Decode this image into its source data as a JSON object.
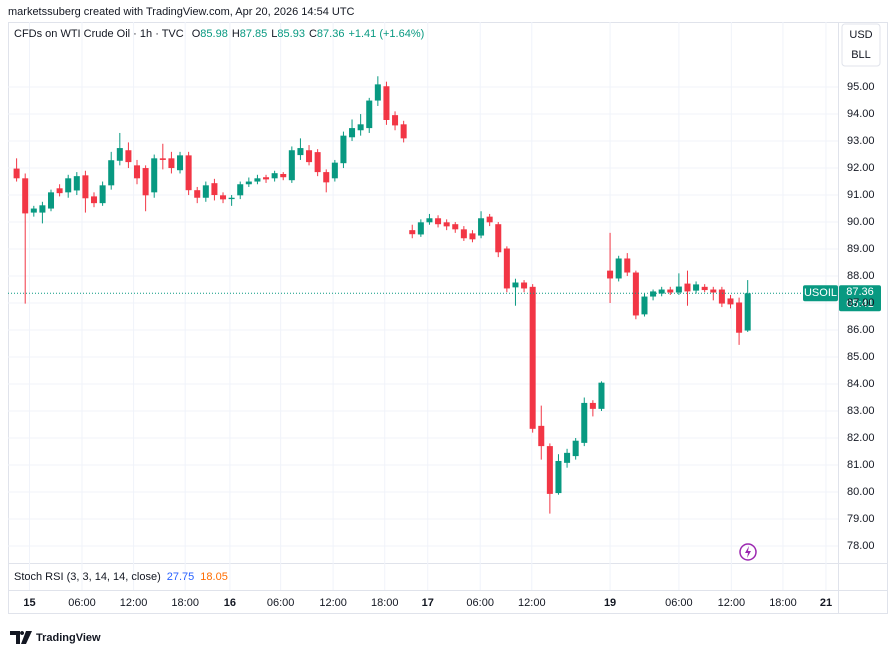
{
  "header": {
    "text": "marketssuberg created with TradingView.com, Apr 20, 2026 14:54 UTC"
  },
  "legend": {
    "symbol": "CFDs on WTI Crude Oil · 1h · TVC",
    "open_label": "O",
    "open": 85.98,
    "high_label": "H",
    "high": 87.85,
    "low_label": "L",
    "low": 85.93,
    "close_label": "C",
    "close": 87.36,
    "change": "+1.41 (+1.64%)"
  },
  "currency": {
    "unit": "USD",
    "measure": "BLL"
  },
  "price_tag": {
    "symbol": "USOIL",
    "price": 87.36,
    "countdown": "05:41"
  },
  "indicator": {
    "name": "Stoch RSI (3, 3, 14, 14, close)",
    "k": 27.75,
    "k_color": "#2962ff",
    "d": 18.05,
    "d_color": "#ff6d00"
  },
  "branding": {
    "logo": "TradingView"
  },
  "chart_data": {
    "type": "candlestick",
    "up_color": "#089981",
    "down_color": "#f23645",
    "open": [
      91.98,
      91.62,
      90.35,
      90.35,
      90.5,
      91.25,
      91.1,
      91.17,
      91.73,
      90.95,
      90.7,
      91.36,
      92.27,
      92.66,
      92.1,
      92.0,
      91.1,
      92.36,
      92.36,
      91.92,
      92.47,
      91.18,
      90.9,
      91.44,
      90.99,
      90.85,
      90.99,
      91.4,
      91.5,
      91.66,
      91.62,
      91.78,
      91.55,
      92.48,
      92.66,
      92.59,
      91.85,
      91.62,
      92.18,
      93.14,
      93.4,
      93.48,
      94.5,
      95.03,
      93.96,
      93.62,
      89.7,
      89.54,
      89.99,
      90.14,
      89.99,
      89.92,
      89.73,
      89.58,
      89.5,
      90.2,
      89.92,
      89.02,
      87.58,
      87.76,
      87.6,
      82.45,
      81.7,
      79.96,
      81.08,
      81.33,
      81.82,
      83.3,
      83.08,
      88.2,
      87.91,
      88.65,
      88.13,
      86.58,
      87.24,
      87.35,
      87.5,
      87.39,
      87.72,
      87.46,
      87.6,
      87.5,
      87.5,
      87.17,
      87.02,
      85.98
    ],
    "high": [
      92.36,
      91.8,
      90.6,
      90.75,
      91.2,
      91.4,
      91.75,
      91.85,
      91.9,
      91.1,
      91.5,
      92.6,
      93.3,
      92.95,
      92.3,
      92.1,
      92.5,
      92.9,
      92.6,
      92.6,
      92.6,
      91.3,
      91.5,
      91.6,
      91.1,
      91.0,
      91.5,
      91.65,
      91.75,
      91.75,
      91.9,
      91.85,
      92.8,
      93.1,
      92.85,
      92.7,
      91.95,
      92.3,
      93.35,
      93.8,
      94.0,
      94.6,
      95.4,
      95.2,
      94.1,
      93.75,
      89.9,
      90.1,
      90.3,
      90.25,
      90.1,
      90.0,
      89.85,
      89.7,
      90.4,
      90.3,
      90.0,
      89.1,
      87.9,
      87.85,
      87.7,
      83.2,
      81.8,
      81.4,
      81.6,
      82.0,
      83.5,
      83.4,
      84.1,
      89.6,
      88.75,
      88.85,
      88.2,
      87.35,
      87.5,
      87.6,
      87.6,
      88.1,
      88.2,
      87.8,
      87.7,
      87.6,
      87.6,
      87.3,
      87.2,
      87.85
    ],
    "low": [
      91.5,
      86.98,
      90.2,
      89.95,
      90.4,
      90.95,
      90.9,
      91.0,
      90.35,
      90.55,
      90.6,
      91.2,
      92.1,
      92.0,
      91.4,
      90.4,
      90.9,
      91.95,
      91.8,
      91.8,
      91.0,
      90.7,
      90.75,
      90.8,
      90.7,
      90.6,
      90.85,
      91.3,
      91.4,
      91.45,
      91.5,
      91.55,
      91.45,
      92.3,
      92.1,
      91.7,
      91.1,
      91.5,
      92.0,
      93.0,
      93.2,
      93.3,
      94.3,
      93.6,
      93.4,
      92.95,
      89.4,
      89.45,
      89.9,
      89.8,
      89.7,
      89.6,
      89.3,
      89.25,
      89.4,
      89.85,
      88.7,
      87.4,
      86.9,
      87.4,
      82.2,
      81.2,
      79.2,
      79.9,
      80.9,
      81.2,
      81.7,
      82.8,
      83.0,
      87.0,
      87.8,
      88.0,
      86.4,
      86.5,
      87.1,
      87.25,
      87.3,
      87.3,
      86.9,
      87.35,
      87.4,
      87.1,
      86.85,
      86.8,
      85.45,
      85.93
    ],
    "close": [
      91.62,
      90.32,
      90.5,
      90.62,
      91.1,
      91.07,
      91.62,
      91.7,
      90.88,
      90.7,
      91.36,
      92.29,
      92.74,
      92.22,
      91.62,
      90.99,
      92.36,
      92.3,
      92.0,
      92.47,
      91.18,
      90.9,
      91.36,
      91.0,
      90.84,
      90.9,
      91.4,
      91.5,
      91.62,
      91.58,
      91.81,
      91.66,
      92.66,
      92.74,
      92.22,
      91.85,
      91.47,
      92.2,
      93.2,
      93.48,
      93.62,
      94.5,
      95.1,
      93.78,
      93.58,
      93.1,
      89.55,
      89.99,
      90.14,
      89.92,
      89.84,
      89.73,
      89.4,
      89.36,
      90.14,
      89.99,
      88.88,
      87.54,
      87.76,
      87.54,
      82.34,
      81.7,
      79.93,
      81.15,
      81.45,
      81.9,
      83.3,
      83.08,
      84.05,
      87.91,
      88.65,
      88.13,
      86.54,
      87.24,
      87.43,
      87.5,
      87.39,
      87.61,
      87.43,
      87.69,
      87.48,
      87.39,
      86.98,
      86.95,
      85.9,
      87.36
    ],
    "xlim": [
      -1,
      95.5
    ],
    "xticks": [
      {
        "value": 1.5,
        "label": "15"
      },
      {
        "value": 7.6,
        "label": "06:00"
      },
      {
        "value": 13.6,
        "label": "12:00"
      },
      {
        "value": 19.6,
        "label": "18:00"
      },
      {
        "value": 24.8,
        "label": "16"
      },
      {
        "value": 30.7,
        "label": "06:00"
      },
      {
        "value": 36.8,
        "label": "12:00"
      },
      {
        "value": 42.8,
        "label": "18:00"
      },
      {
        "value": 47.8,
        "label": "17"
      },
      {
        "value": 53.9,
        "label": "06:00"
      },
      {
        "value": 59.9,
        "label": "12:00"
      },
      {
        "value": 69,
        "label": "19"
      },
      {
        "value": 77,
        "label": "06:00"
      },
      {
        "value": 83.1,
        "label": "12:00"
      },
      {
        "value": 89.1,
        "label": "18:00"
      },
      {
        "value": 94.1,
        "label": "21"
      }
    ],
    "ylim": [
      77.37,
      97.41
    ],
    "yticks": [
      {
        "value": 78,
        "label": "78.00"
      },
      {
        "value": 79,
        "label": "79.00"
      },
      {
        "value": 80,
        "label": "80.00"
      },
      {
        "value": 81,
        "label": "81.00"
      },
      {
        "value": 82,
        "label": "82.00"
      },
      {
        "value": 83,
        "label": "83.00"
      },
      {
        "value": 84,
        "label": "84.00"
      },
      {
        "value": 85,
        "label": "85.00"
      },
      {
        "value": 86,
        "label": "86.00"
      },
      {
        "value": 87,
        "label": "87.00"
      },
      {
        "value": 88,
        "label": "88.00"
      },
      {
        "value": 89,
        "label": "89.00"
      },
      {
        "value": 90,
        "label": "90.00"
      },
      {
        "value": 91,
        "label": "91.00"
      },
      {
        "value": 92,
        "label": "92.00"
      },
      {
        "value": 93,
        "label": "93.00"
      },
      {
        "value": 94,
        "label": "94.00"
      },
      {
        "value": 95,
        "label": "95.00"
      }
    ],
    "grid": true
  }
}
